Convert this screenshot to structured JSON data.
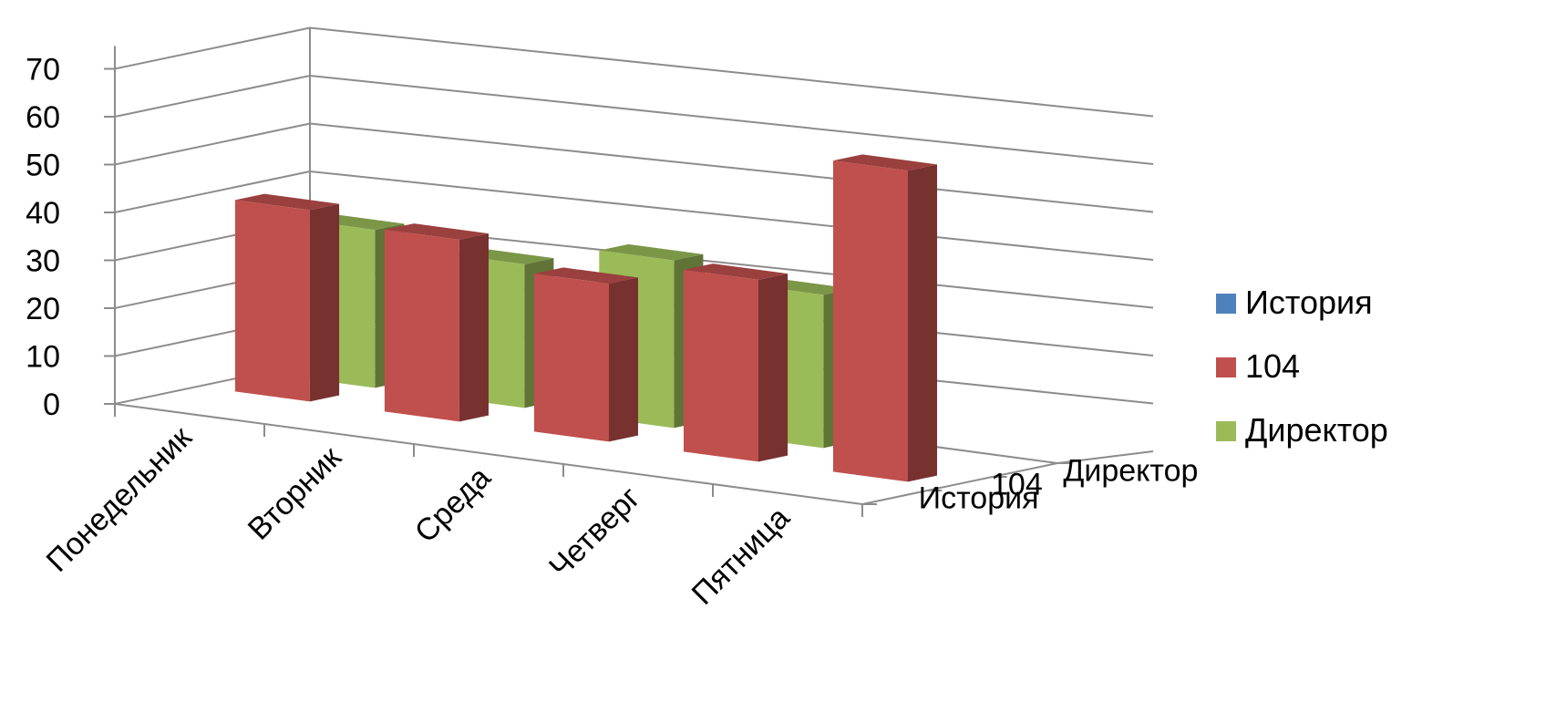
{
  "chart_data": {
    "type": "bar",
    "subtype": "3d-column",
    "categories": [
      "Понедельник",
      "Вторник",
      "Среда",
      "Четверг",
      "Пятница"
    ],
    "series": [
      {
        "name": "История",
        "values": [
          0,
          0,
          0,
          0,
          0
        ],
        "color": "#4F81BD"
      },
      {
        "name": "104",
        "values": [
          40,
          38,
          33,
          38,
          65
        ],
        "color": "#C0504D"
      },
      {
        "name": "Директор",
        "values": [
          33,
          30,
          35,
          32,
          0
        ],
        "color": "#9BBB59"
      }
    ],
    "depth_axis_labels": [
      "История",
      "104",
      "Директор"
    ],
    "yticks": [
      0,
      10,
      20,
      30,
      40,
      50,
      60,
      70
    ],
    "ylim": [
      0,
      70
    ],
    "grid": true,
    "legend": "right"
  }
}
